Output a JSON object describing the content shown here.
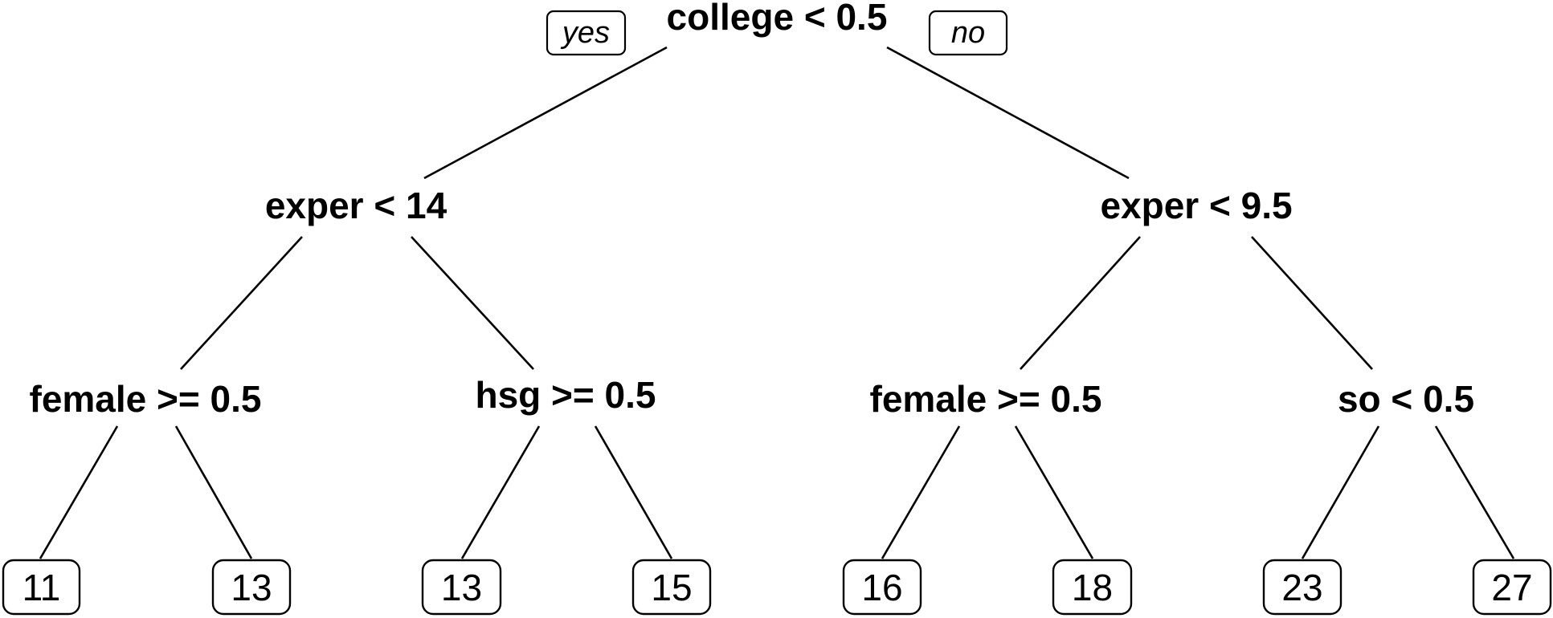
{
  "tree": {
    "branch_labels": {
      "left": "yes",
      "right": "no"
    },
    "root": {
      "label": "college < 0.5",
      "left": {
        "label": "exper < 14",
        "left": {
          "label": "female >= 0.5",
          "leaves": [
            "11",
            "13"
          ]
        },
        "right": {
          "label": "hsg >= 0.5",
          "leaves": [
            "13",
            "15"
          ]
        }
      },
      "right": {
        "label": "exper < 9.5",
        "left": {
          "label": "female >= 0.5",
          "leaves": [
            "16",
            "18"
          ]
        },
        "right": {
          "label": "so < 0.5",
          "leaves": [
            "23",
            "27"
          ]
        }
      }
    }
  }
}
